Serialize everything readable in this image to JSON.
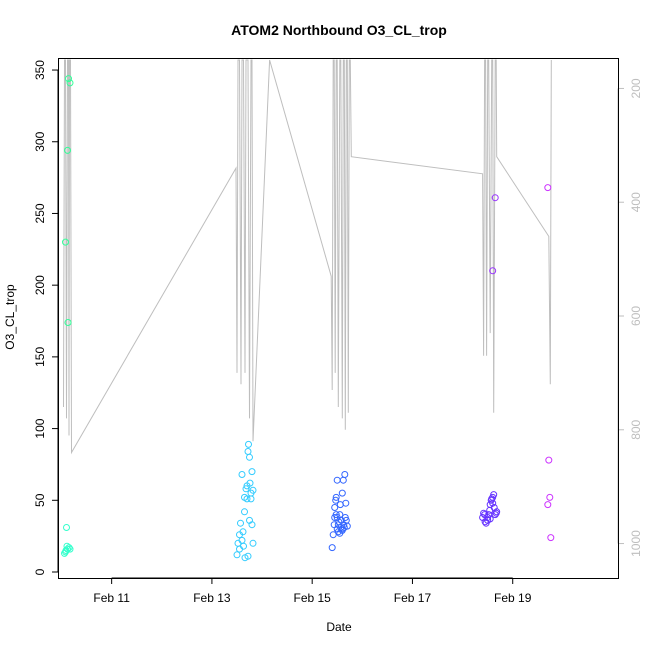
{
  "chart_data": {
    "type": "scatter",
    "title": "ATOM2 Northbound O3_CL_trop",
    "xlabel": "Date",
    "ylabel": "O3_CL_trop",
    "x_ticks": [
      {
        "day": 11,
        "label": "Feb 11"
      },
      {
        "day": 13,
        "label": "Feb 13"
      },
      {
        "day": 15,
        "label": "Feb 15"
      },
      {
        "day": 17,
        "label": "Feb 17"
      },
      {
        "day": 19,
        "label": "Feb 19"
      }
    ],
    "xlim": [
      9.93,
      21.1
    ],
    "ylim": [
      0,
      357
    ],
    "y_ticks": [
      0,
      50,
      100,
      150,
      200,
      250,
      300,
      350
    ],
    "secondary_axis": {
      "position": "right",
      "reversed": true,
      "range": [
        150,
        1050
      ],
      "ticks": [
        200,
        400,
        600,
        800,
        1000
      ],
      "color": "#bebebe"
    },
    "grid": false,
    "legend": "none",
    "series": [
      {
        "color": "#33ff99",
        "points": [
          [
            10.08,
            230
          ],
          [
            10.12,
            294
          ],
          [
            10.14,
            344
          ],
          [
            10.17,
            341
          ],
          [
            10.13,
            174
          ]
        ]
      },
      {
        "color": "#33ffcc",
        "points": [
          [
            10.1,
            31
          ],
          [
            10.06,
            13
          ],
          [
            10.09,
            15
          ],
          [
            10.12,
            16
          ],
          [
            10.15,
            17
          ],
          [
            10.11,
            18
          ],
          [
            10.17,
            16
          ],
          [
            10.08,
            14
          ]
        ]
      },
      {
        "color": "#33ccff",
        "points": [
          [
            13.5,
            12
          ],
          [
            13.52,
            20
          ],
          [
            13.55,
            26
          ],
          [
            13.57,
            34
          ],
          [
            13.6,
            68
          ],
          [
            13.62,
            28
          ],
          [
            13.65,
            42
          ],
          [
            13.68,
            58
          ],
          [
            13.7,
            51
          ],
          [
            13.72,
            84
          ],
          [
            13.73,
            89
          ],
          [
            13.75,
            80
          ],
          [
            13.76,
            62
          ],
          [
            13.78,
            55
          ],
          [
            13.8,
            70
          ],
          [
            13.82,
            57
          ],
          [
            13.65,
            52
          ],
          [
            13.7,
            60
          ],
          [
            13.6,
            22
          ],
          [
            13.55,
            16
          ],
          [
            13.8,
            33
          ],
          [
            13.75,
            36
          ],
          [
            13.72,
            11
          ],
          [
            13.66,
            10
          ],
          [
            13.82,
            20
          ],
          [
            13.78,
            51
          ],
          [
            13.63,
            18
          ]
        ]
      },
      {
        "color": "#3366ff",
        "points": [
          [
            15.4,
            17
          ],
          [
            15.42,
            26
          ],
          [
            15.44,
            33
          ],
          [
            15.45,
            38
          ],
          [
            15.47,
            50
          ],
          [
            15.48,
            52
          ],
          [
            15.5,
            64
          ],
          [
            15.5,
            30
          ],
          [
            15.52,
            28
          ],
          [
            15.53,
            35
          ],
          [
            15.55,
            40
          ],
          [
            15.56,
            47
          ],
          [
            15.57,
            31
          ],
          [
            15.58,
            36
          ],
          [
            15.6,
            29
          ],
          [
            15.6,
            55
          ],
          [
            15.62,
            64
          ],
          [
            15.63,
            33
          ],
          [
            15.64,
            31
          ],
          [
            15.65,
            68
          ],
          [
            15.66,
            38
          ],
          [
            15.67,
            48
          ],
          [
            15.68,
            36
          ],
          [
            15.7,
            32
          ],
          [
            15.45,
            45
          ],
          [
            15.5,
            38
          ],
          [
            15.55,
            27
          ],
          [
            15.6,
            30
          ],
          [
            15.48,
            40
          ],
          [
            15.52,
            33
          ]
        ]
      },
      {
        "color": "#6633ff",
        "points": [
          [
            18.4,
            38
          ],
          [
            18.42,
            41
          ],
          [
            18.45,
            35
          ],
          [
            18.47,
            34
          ],
          [
            18.5,
            38
          ],
          [
            18.52,
            40
          ],
          [
            18.54,
            43
          ],
          [
            18.55,
            47
          ],
          [
            18.57,
            50
          ],
          [
            18.6,
            52
          ],
          [
            18.62,
            54
          ],
          [
            18.63,
            45
          ],
          [
            18.65,
            40
          ],
          [
            18.67,
            41
          ],
          [
            18.68,
            42
          ],
          [
            18.5,
            36
          ],
          [
            18.55,
            37
          ],
          [
            18.6,
            48
          ],
          [
            18.58,
            51
          ],
          [
            18.44,
            40
          ]
        ]
      },
      {
        "color": "#9933ff",
        "points": [
          [
            18.6,
            210
          ],
          [
            18.65,
            261
          ]
        ]
      },
      {
        "color": "#cc33ff",
        "points": [
          [
            19.7,
            268
          ],
          [
            19.72,
            78
          ],
          [
            19.74,
            52
          ],
          [
            19.7,
            47
          ],
          [
            19.76,
            24
          ]
        ]
      }
    ],
    "profile_line": {
      "color": "#bebebe",
      "axis": "secondary",
      "points": [
        [
          10.04,
          760
        ],
        [
          10.06,
          150
        ],
        [
          10.08,
          150
        ],
        [
          10.1,
          780
        ],
        [
          10.12,
          150
        ],
        [
          10.14,
          150
        ],
        [
          10.15,
          810
        ],
        [
          10.16,
          150
        ],
        [
          10.18,
          150
        ],
        [
          10.2,
          840
        ],
        [
          13.48,
          340
        ],
        [
          13.5,
          700
        ],
        [
          13.52,
          150
        ],
        [
          13.55,
          150
        ],
        [
          13.58,
          720
        ],
        [
          13.6,
          150
        ],
        [
          13.63,
          150
        ],
        [
          13.66,
          700
        ],
        [
          13.68,
          150
        ],
        [
          13.72,
          150
        ],
        [
          13.75,
          780
        ],
        [
          13.78,
          150
        ],
        [
          13.8,
          150
        ],
        [
          13.82,
          820
        ],
        [
          14.15,
          150
        ],
        [
          15.38,
          530
        ],
        [
          15.4,
          730
        ],
        [
          15.42,
          150
        ],
        [
          15.44,
          150
        ],
        [
          15.46,
          700
        ],
        [
          15.48,
          150
        ],
        [
          15.5,
          150
        ],
        [
          15.52,
          760
        ],
        [
          15.55,
          150
        ],
        [
          15.57,
          150
        ],
        [
          15.6,
          780
        ],
        [
          15.62,
          150
        ],
        [
          15.64,
          150
        ],
        [
          15.66,
          800
        ],
        [
          15.68,
          150
        ],
        [
          15.7,
          150
        ],
        [
          15.72,
          770
        ],
        [
          15.74,
          150
        ],
        [
          15.76,
          150
        ],
        [
          15.78,
          320
        ],
        [
          18.4,
          350
        ],
        [
          18.42,
          670
        ],
        [
          18.44,
          150
        ],
        [
          18.46,
          150
        ],
        [
          18.48,
          670
        ],
        [
          18.5,
          150
        ],
        [
          18.52,
          150
        ],
        [
          18.55,
          630
        ],
        [
          18.58,
          150
        ],
        [
          18.6,
          150
        ],
        [
          18.62,
          770
        ],
        [
          18.65,
          150
        ],
        [
          18.67,
          150
        ],
        [
          18.68,
          320
        ],
        [
          19.72,
          460
        ],
        [
          19.75,
          720
        ],
        [
          19.77,
          150
        ]
      ]
    }
  }
}
